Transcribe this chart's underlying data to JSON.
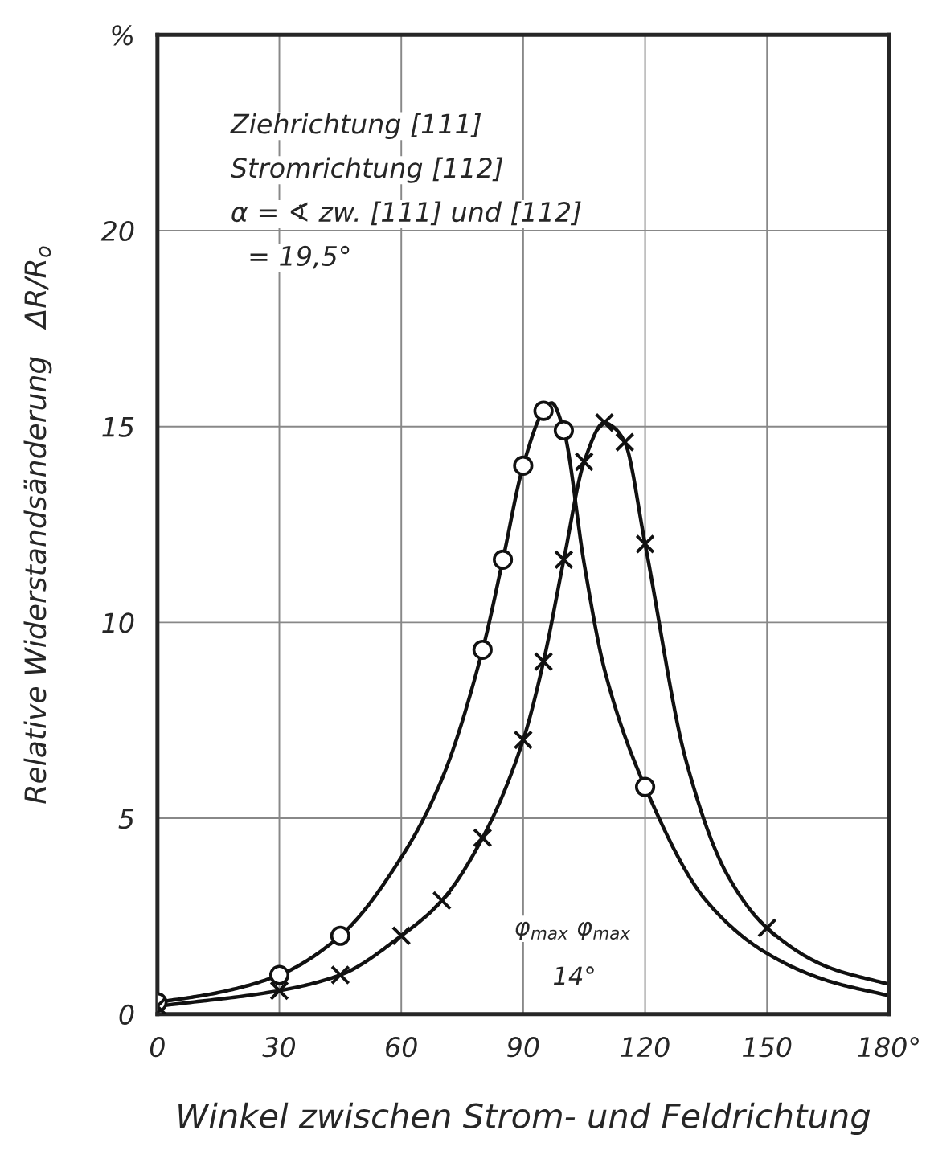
{
  "chart_data": {
    "type": "line",
    "xlabel": "Winkel zwischen Strom- und Feldrichtung",
    "ylabel": "Relative Widerstandsänderung   ΔR/R$_{o}$",
    "xlim": [
      0,
      180
    ],
    "ylim": [
      0,
      25
    ],
    "xticks": [
      0,
      30,
      60,
      90,
      120,
      150,
      {
        "value": 180,
        "label": "180°"
      }
    ],
    "yticks": [
      0,
      5,
      10,
      15,
      20,
      {
        "value": 25,
        "label": "%"
      }
    ],
    "grid": true,
    "series": [
      {
        "type": "scatter",
        "marker": "circle",
        "color": "#111111",
        "x": [
          0,
          30,
          45,
          80,
          85,
          90,
          95,
          100,
          120
        ],
        "values": [
          0.3,
          1.0,
          2.0,
          9.3,
          11.6,
          14.0,
          15.4,
          14.9,
          5.8
        ]
      },
      {
        "type": "scatter",
        "marker": "cross",
        "color": "#111111",
        "x": [
          0,
          30,
          45,
          60,
          70,
          80,
          90,
          95,
          100,
          105,
          110,
          115,
          120,
          150
        ],
        "values": [
          0.2,
          0.6,
          1.0,
          2.0,
          2.9,
          4.5,
          7.0,
          9.0,
          11.6,
          14.1,
          15.1,
          14.6,
          12.0,
          2.2
        ]
      },
      {
        "line_style": "solid",
        "color": "#111111",
        "x": [
          0,
          15,
          30,
          45,
          60,
          70,
          80,
          85,
          90,
          95,
          97,
          100,
          105,
          110,
          120,
          135,
          150,
          165,
          180
        ],
        "values": [
          0.3,
          0.55,
          1.0,
          2.0,
          4.0,
          6.0,
          9.3,
          11.6,
          14.0,
          15.4,
          15.6,
          14.9,
          11.5,
          8.8,
          5.8,
          2.9,
          1.55,
          0.85,
          0.47
        ]
      },
      {
        "line_style": "solid",
        "color": "#111111",
        "x": [
          0,
          30,
          45,
          60,
          70,
          80,
          90,
          95,
          100,
          105,
          110,
          112,
          115,
          120,
          130,
          140,
          150,
          165,
          180
        ],
        "values": [
          0.2,
          0.6,
          1.0,
          2.0,
          2.9,
          4.5,
          7.0,
          9.0,
          11.6,
          14.1,
          15.1,
          15.0,
          14.6,
          12.0,
          6.5,
          3.6,
          2.2,
          1.2,
          0.76
        ]
      }
    ],
    "annotations": [
      "Ziehrichtung [111]",
      "Stromrichtung [112]",
      "α = ∢ zw. [111] und [112]",
      "  = 19,5°",
      "φ$_{max}$",
      "φ$_{max}$",
      "14°"
    ]
  }
}
